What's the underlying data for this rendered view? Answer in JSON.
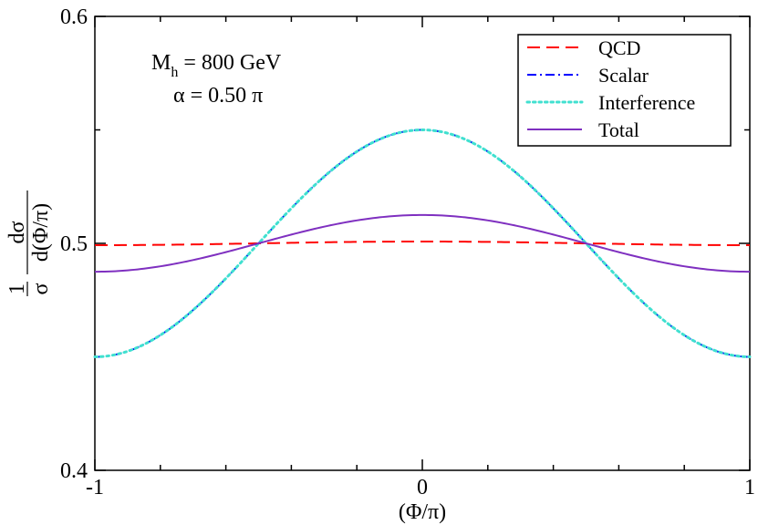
{
  "chart_data": {
    "type": "line",
    "xlabel": "(Φ/π)",
    "ylabel": {
      "prefix_num": "1",
      "prefix_den": "σ",
      "num": "dσ",
      "den": "d(Φ/π)"
    },
    "xlim": [
      -1,
      1
    ],
    "ylim": [
      0.4,
      0.6
    ],
    "x_ticks": [
      -1,
      0,
      1
    ],
    "x_tick_labels": [
      "-1",
      "0",
      "1"
    ],
    "y_ticks": [
      0.4,
      0.5,
      0.6
    ],
    "y_tick_labels": [
      "0.4",
      "0.5",
      "0.6"
    ],
    "grid": false,
    "legend_position": "top-right",
    "annotations": {
      "mass_main": "M",
      "mass_sub": "h",
      "mass_value": " = 800 GeV",
      "alpha": "α = 0.50 π"
    },
    "series": [
      {
        "name": "QCD",
        "color": "#ff0000",
        "dash": "dashed",
        "x": [
          -1,
          -0.75,
          -0.5,
          -0.25,
          0,
          0.25,
          0.5,
          0.75,
          1
        ],
        "y": [
          0.4992,
          0.4995,
          0.5,
          0.5005,
          0.5008,
          0.5005,
          0.5,
          0.4995,
          0.4992
        ]
      },
      {
        "name": "Scalar",
        "color": "#0000ff",
        "dash": "dashdot",
        "x": [
          -1,
          -0.75,
          -0.5,
          -0.25,
          0,
          0.25,
          0.5,
          0.75,
          1
        ],
        "y": [
          0.45,
          0.4646,
          0.5,
          0.5354,
          0.55,
          0.5354,
          0.5,
          0.4646,
          0.45
        ]
      },
      {
        "name": "Interference",
        "color": "#40e0d0",
        "dash": "dotted",
        "x": [
          -1,
          -0.75,
          -0.5,
          -0.25,
          0,
          0.25,
          0.5,
          0.75,
          1
        ],
        "y": [
          0.45,
          0.4646,
          0.5,
          0.5354,
          0.55,
          0.5354,
          0.5,
          0.4646,
          0.45
        ]
      },
      {
        "name": "Total",
        "color": "#7f30c0",
        "dash": "solid",
        "x": [
          -1,
          -0.75,
          -0.5,
          -0.25,
          0,
          0.25,
          0.5,
          0.75,
          1
        ],
        "y": [
          0.4875,
          0.4912,
          0.5,
          0.5088,
          0.5125,
          0.5088,
          0.5,
          0.4912,
          0.4875
        ]
      }
    ]
  }
}
